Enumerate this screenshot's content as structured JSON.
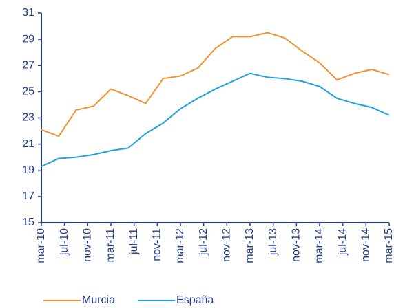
{
  "chart_data": {
    "type": "line",
    "x": [
      0,
      3,
      6,
      9,
      12,
      15,
      18,
      21,
      24,
      27,
      30,
      33,
      36,
      39,
      42,
      45,
      48,
      51,
      54,
      57,
      60
    ],
    "xlim": [
      0,
      60
    ],
    "xticks": [
      {
        "value": 0,
        "label": "mar-10"
      },
      {
        "value": 4,
        "label": "jul-10"
      },
      {
        "value": 8,
        "label": "nov-10"
      },
      {
        "value": 12,
        "label": "mar-11"
      },
      {
        "value": 16,
        "label": "jul-11"
      },
      {
        "value": 20,
        "label": "nov-11"
      },
      {
        "value": 24,
        "label": "mar-12"
      },
      {
        "value": 28,
        "label": "jul-12"
      },
      {
        "value": 32,
        "label": "nov-12"
      },
      {
        "value": 36,
        "label": "mar-13"
      },
      {
        "value": 40,
        "label": "jul-13"
      },
      {
        "value": 44,
        "label": "nov-13"
      },
      {
        "value": 48,
        "label": "mar-14"
      },
      {
        "value": 52,
        "label": "jul-14"
      },
      {
        "value": 56,
        "label": "nov-14"
      },
      {
        "value": 60,
        "label": "mar-15"
      }
    ],
    "ylim": [
      15,
      31
    ],
    "yticks": [
      15,
      17,
      19,
      21,
      23,
      25,
      27,
      29,
      31
    ],
    "grid": false,
    "legend": "bottom",
    "series": [
      {
        "name": "Murcia",
        "color": "#f0922e",
        "values": [
          22.1,
          21.6,
          23.6,
          23.9,
          25.2,
          24.7,
          24.1,
          26.0,
          26.2,
          26.8,
          28.3,
          29.2,
          29.2,
          29.5,
          29.1,
          28.1,
          27.2,
          25.9,
          26.4,
          26.7,
          26.3
        ]
      },
      {
        "name": "España",
        "color": "#1aa3dc",
        "values": [
          19.3,
          19.9,
          20.0,
          20.2,
          20.5,
          20.7,
          21.8,
          22.6,
          23.7,
          24.5,
          25.2,
          25.8,
          26.4,
          26.1,
          26.0,
          25.8,
          25.4,
          24.5,
          24.1,
          23.8,
          23.2
        ]
      }
    ]
  }
}
